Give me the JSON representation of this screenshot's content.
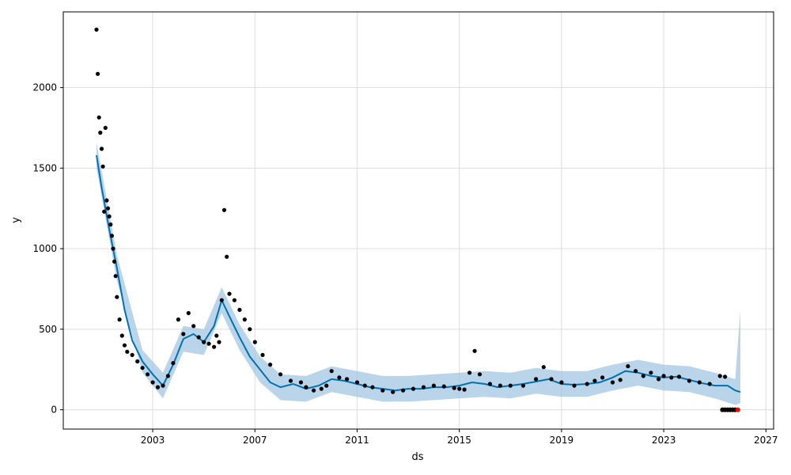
{
  "chart_data": {
    "type": "scatter",
    "title": "",
    "xlabel": "ds",
    "ylabel": "y",
    "xlim": [
      1999.5,
      2027.3
    ],
    "ylim": [
      -120,
      2470
    ],
    "x_ticks": [
      2003,
      2007,
      2011,
      2015,
      2019,
      2023,
      2027
    ],
    "y_ticks": [
      0,
      500,
      1000,
      1500,
      2000
    ],
    "grid": true,
    "colors": {
      "observed": "#000000",
      "forecast": "#0072B2",
      "interval": "#9dc3e0",
      "highlight": "#ff0000"
    },
    "series": [
      {
        "name": "",
        "kind": "observed-points",
        "x": [
          2000.8,
          2000.85,
          2000.9,
          2000.95,
          2001.0,
          2001.05,
          2001.1,
          2001.15,
          2001.2,
          2001.25,
          2001.3,
          2001.35,
          2001.4,
          2001.45,
          2001.5,
          2001.55,
          2001.6,
          2001.7,
          2001.8,
          2001.9,
          2002.0,
          2002.2,
          2002.4,
          2002.6,
          2002.8,
          2003.0,
          2003.2,
          2003.4,
          2003.6,
          2003.8,
          2004.0,
          2004.2,
          2004.4,
          2004.6,
          2004.8,
          2005.0,
          2005.2,
          2005.4,
          2005.5,
          2005.6,
          2005.7,
          2005.8,
          2005.9,
          2006.0,
          2006.2,
          2006.4,
          2006.6,
          2006.8,
          2007.0,
          2007.3,
          2007.6,
          2008.0,
          2008.4,
          2008.8,
          2009.0,
          2009.3,
          2009.6,
          2009.8,
          2010.0,
          2010.3,
          2010.6,
          2011.0,
          2011.3,
          2011.6,
          2012.0,
          2012.4,
          2012.8,
          2013.2,
          2013.6,
          2014.0,
          2014.4,
          2014.8,
          2015.0,
          2015.2,
          2015.4,
          2015.6,
          2015.8,
          2016.2,
          2016.6,
          2017.0,
          2017.5,
          2018.0,
          2018.3,
          2018.6,
          2019.0,
          2019.5,
          2020.0,
          2020.3,
          2020.6,
          2021.0,
          2021.3,
          2021.6,
          2021.9,
          2022.2,
          2022.5,
          2022.8,
          2023.0,
          2023.3,
          2023.6,
          2024.0,
          2024.4,
          2024.8,
          2025.2,
          2025.4
        ],
        "y": [
          2360,
          2085,
          1815,
          1720,
          1620,
          1510,
          1230,
          1750,
          1300,
          1250,
          1200,
          1150,
          1080,
          1000,
          920,
          830,
          700,
          560,
          460,
          400,
          360,
          340,
          300,
          260,
          220,
          170,
          140,
          150,
          210,
          290,
          560,
          470,
          600,
          520,
          450,
          420,
          410,
          390,
          460,
          420,
          680,
          1240,
          950,
          720,
          680,
          620,
          560,
          500,
          420,
          340,
          280,
          220,
          180,
          170,
          140,
          120,
          130,
          150,
          240,
          200,
          190,
          170,
          150,
          140,
          120,
          110,
          120,
          130,
          140,
          150,
          145,
          135,
          130,
          125,
          230,
          365,
          220,
          160,
          150,
          150,
          150,
          190,
          265,
          190,
          170,
          150,
          160,
          180,
          200,
          170,
          185,
          270,
          240,
          210,
          230,
          190,
          210,
          200,
          205,
          180,
          170,
          160,
          210,
          205
        ]
      },
      {
        "name": "",
        "kind": "forecast-line",
        "x": [
          2000.8,
          2001.0,
          2001.3,
          2001.6,
          2001.9,
          2002.2,
          2002.6,
          2003.0,
          2003.4,
          2003.8,
          2004.2,
          2004.6,
          2005.0,
          2005.4,
          2005.7,
          2006.0,
          2006.4,
          2006.8,
          2007.2,
          2007.6,
          2008.0,
          2008.5,
          2009.0,
          2009.5,
          2010.0,
          2010.5,
          2011.0,
          2011.5,
          2012.0,
          2012.5,
          2013.0,
          2013.5,
          2014.0,
          2014.5,
          2015.0,
          2015.5,
          2016.0,
          2016.5,
          2017.0,
          2017.5,
          2018.0,
          2018.5,
          2019.0,
          2019.5,
          2020.0,
          2020.5,
          2021.0,
          2021.5,
          2022.0,
          2022.5,
          2023.0,
          2023.5,
          2024.0,
          2024.5,
          2025.0,
          2025.5,
          2025.8,
          2026.0
        ],
        "y": [
          1580,
          1380,
          1120,
          880,
          620,
          430,
          300,
          220,
          150,
          280,
          440,
          470,
          420,
          520,
          680,
          580,
          450,
          330,
          250,
          170,
          140,
          160,
          130,
          150,
          190,
          180,
          160,
          140,
          130,
          120,
          130,
          130,
          140,
          140,
          150,
          170,
          160,
          140,
          150,
          160,
          175,
          190,
          160,
          155,
          160,
          170,
          200,
          240,
          230,
          210,
          200,
          205,
          185,
          165,
          150,
          150,
          120,
          110
        ]
      },
      {
        "name": "",
        "kind": "uncertainty-band",
        "x": [
          2000.8,
          2001.6,
          2002.6,
          2003.0,
          2003.4,
          2004.2,
          2005.0,
          2005.7,
          2006.4,
          2007.2,
          2008.0,
          2009.0,
          2010.0,
          2011.0,
          2012.0,
          2013.0,
          2014.0,
          2015.0,
          2016.0,
          2017.0,
          2018.0,
          2019.0,
          2020.0,
          2021.0,
          2022.0,
          2023.0,
          2024.0,
          2025.0,
          2025.8,
          2026.0
        ],
        "lower": [
          1500,
          800,
          230,
          150,
          70,
          360,
          340,
          600,
          370,
          170,
          60,
          50,
          110,
          80,
          50,
          50,
          60,
          70,
          80,
          70,
          100,
          80,
          80,
          120,
          150,
          120,
          110,
          70,
          30,
          40
        ],
        "upper": [
          1660,
          960,
          370,
          300,
          230,
          520,
          500,
          760,
          530,
          330,
          220,
          210,
          270,
          240,
          210,
          210,
          220,
          230,
          240,
          230,
          260,
          240,
          240,
          280,
          310,
          280,
          270,
          230,
          190,
          620
        ]
      },
      {
        "name": "",
        "kind": "future-points",
        "x": [
          2025.3,
          2025.4,
          2025.5,
          2025.6,
          2025.7,
          2025.8,
          2025.9
        ],
        "y": [
          0,
          0,
          0,
          0,
          0,
          0,
          0
        ]
      }
    ]
  }
}
